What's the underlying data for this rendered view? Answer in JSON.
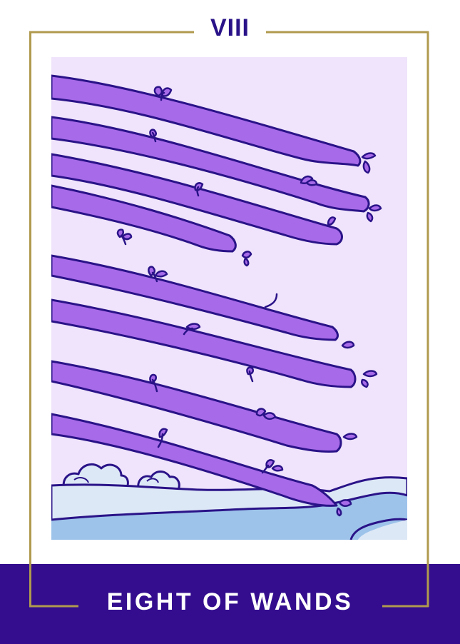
{
  "card": {
    "number": "VIII",
    "title": "EIGHT OF WANDS"
  },
  "colors": {
    "background": "#ffffff",
    "frame_gold": "#b09a4e",
    "band_purple": "#330d8e",
    "sky": "#efe4fb",
    "wand_fill": "#a76ae8",
    "outline": "#2a1388",
    "land": "#dde8f6",
    "water": "#9dc3ea"
  },
  "artwork": {
    "subject": "eight-wands",
    "wand_count": 8
  }
}
